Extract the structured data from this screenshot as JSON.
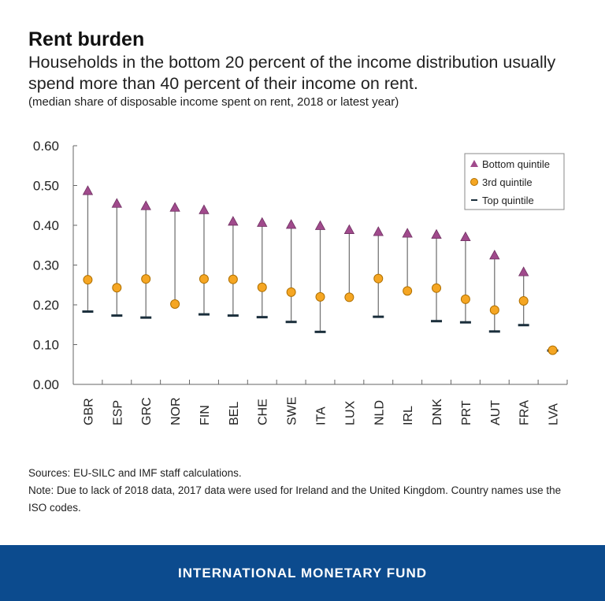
{
  "header": {
    "title": "Rent burden",
    "subtitle": "Households in the bottom 20 percent of the income distribution usually spend more than 40 percent of their income on rent.",
    "unit_note": "(median share of disposable income spent on rent, 2018 or latest year)"
  },
  "chart_data": {
    "type": "scatter",
    "categories": [
      "GBR",
      "ESP",
      "GRC",
      "NOR",
      "FIN",
      "BEL",
      "CHE",
      "SWE",
      "ITA",
      "LUX",
      "NLD",
      "IRL",
      "DNK",
      "PRT",
      "AUT",
      "FRA",
      "LVA"
    ],
    "series": [
      {
        "name": "Bottom quintile",
        "marker": "triangle",
        "color": "#a04a8c",
        "values": [
          0.485,
          0.453,
          0.447,
          0.443,
          0.437,
          0.408,
          0.405,
          0.4,
          0.397,
          0.387,
          0.382,
          0.378,
          0.375,
          0.369,
          0.323,
          0.281,
          null
        ]
      },
      {
        "name": "3rd quintile",
        "marker": "circle",
        "color": "#f5a623",
        "values": [
          0.263,
          0.243,
          0.265,
          0.202,
          0.265,
          0.264,
          0.244,
          0.232,
          0.22,
          0.219,
          0.266,
          0.235,
          0.242,
          0.214,
          0.187,
          0.21,
          0.086
        ]
      },
      {
        "name": "Top quintile",
        "marker": "dash",
        "color": "#1a2e3b",
        "values": [
          0.183,
          0.173,
          0.168,
          null,
          0.176,
          0.173,
          0.169,
          0.157,
          0.132,
          null,
          0.17,
          null,
          0.159,
          0.156,
          0.133,
          0.149,
          0.085
        ]
      }
    ],
    "yticks": [
      "0.00",
      "0.10",
      "0.20",
      "0.30",
      "0.40",
      "0.50",
      "0.60"
    ],
    "ylim": [
      0,
      0.6
    ],
    "grid": false,
    "legend": "top-right"
  },
  "notes": {
    "sources": "Sources: EU-SILC and IMF staff calculations.",
    "note": "Note: Due to lack of 2018 data, 2017 data were used for Ireland and the United Kingdom. Country names use the ISO codes."
  },
  "footer": {
    "org": "INTERNATIONAL MONETARY FUND",
    "color": "#0c4b8e"
  }
}
